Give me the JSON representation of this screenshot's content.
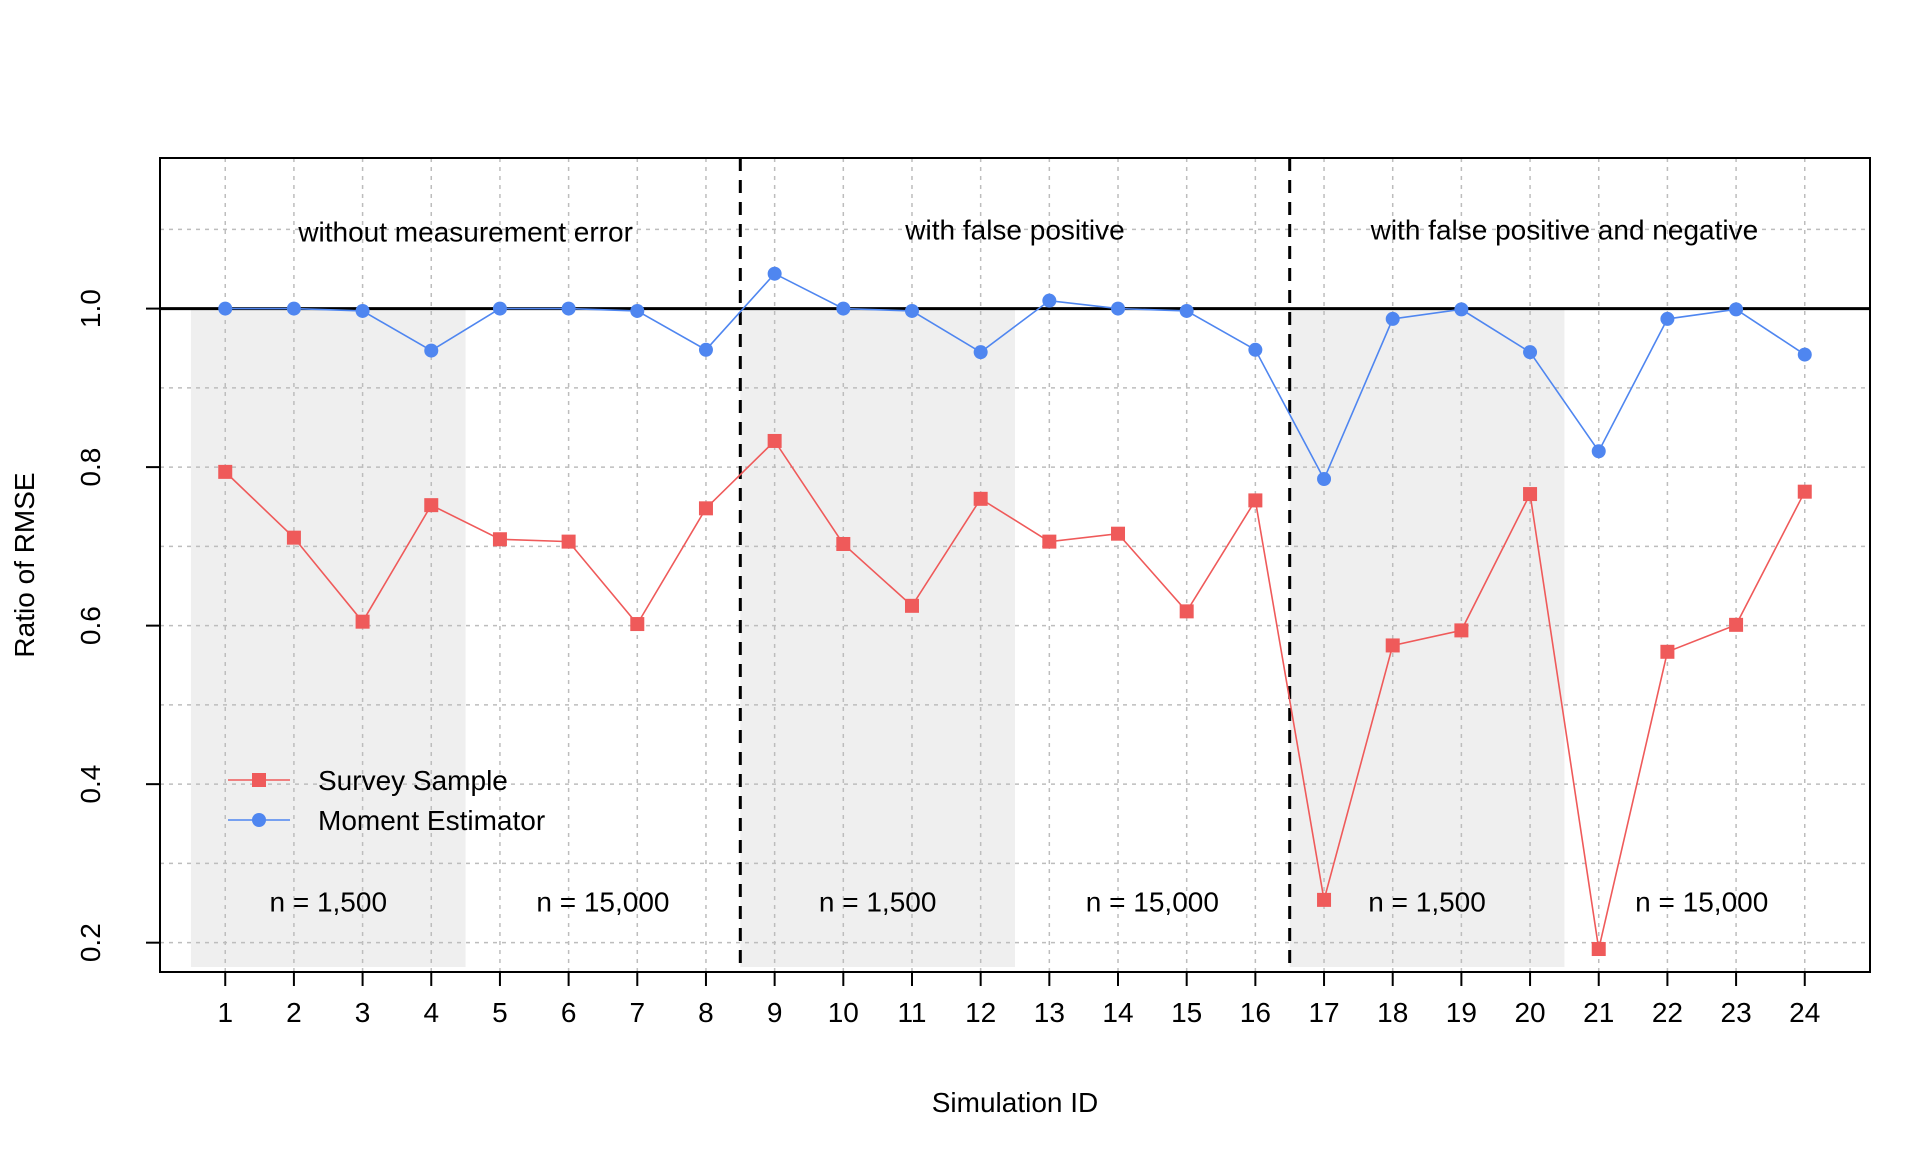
{
  "chart_data": {
    "type": "line",
    "title": "",
    "xlabel": "Simulation ID",
    "ylabel": "Ratio of RMSE",
    "x": [
      1,
      2,
      3,
      4,
      5,
      6,
      7,
      8,
      9,
      10,
      11,
      12,
      13,
      14,
      15,
      16,
      17,
      18,
      19,
      20,
      21,
      22,
      23,
      24
    ],
    "xlim": [
      0.05,
      24.95
    ],
    "ylim": [
      0.163,
      1.19
    ],
    "y_ticks": [
      0.2,
      0.4,
      0.6,
      0.8,
      1.0
    ],
    "y_tick_labels": [
      "0.2",
      "0.4",
      "0.6",
      "0.8",
      "1.0"
    ],
    "grid": true,
    "reference_line_y": 1.0,
    "section_dividers_x": [
      8.5,
      16.5
    ],
    "shaded_x_ranges": [
      [
        0.5,
        4.5
      ],
      [
        8.5,
        12.5
      ],
      [
        16.5,
        20.5
      ]
    ],
    "series": [
      {
        "name": "Survey Sample",
        "color": "#ef5a5a",
        "marker": "square",
        "values": [
          0.794,
          0.711,
          0.605,
          0.752,
          0.709,
          0.706,
          0.602,
          0.748,
          0.833,
          0.703,
          0.625,
          0.76,
          0.706,
          0.716,
          0.618,
          0.758,
          0.254,
          0.575,
          0.594,
          0.766,
          0.192,
          0.567,
          0.601,
          0.769
        ]
      },
      {
        "name": "Moment Estimator",
        "color": "#4f86f0",
        "marker": "circle",
        "values": [
          1.0,
          1.0,
          0.997,
          0.947,
          1.0,
          1.0,
          0.997,
          0.948,
          1.044,
          1.0,
          0.997,
          0.945,
          1.01,
          1.0,
          0.997,
          0.948,
          0.785,
          0.987,
          0.999,
          0.945,
          0.82,
          0.987,
          0.999,
          0.942
        ]
      }
    ],
    "section_labels": [
      {
        "text": "without measurement error",
        "x_center": 4.5,
        "y": 1.097
      },
      {
        "text": "with false positive",
        "x_center": 12.5,
        "y": 1.1
      },
      {
        "text": "with false positive and negative",
        "x_center": 20.5,
        "y": 1.1
      }
    ],
    "sample_size_labels": [
      {
        "text": "n = 1,500",
        "x_center": 2.5
      },
      {
        "text": "n = 15,000",
        "x_center": 6.5
      },
      {
        "text": "n = 1,500",
        "x_center": 10.5
      },
      {
        "text": "n = 15,000",
        "x_center": 14.5
      },
      {
        "text": "n = 1,500",
        "x_center": 18.5
      },
      {
        "text": "n = 15,000",
        "x_center": 22.5
      }
    ],
    "sample_size_label_y": 0.252,
    "legend": {
      "position": "bottom-left"
    }
  }
}
